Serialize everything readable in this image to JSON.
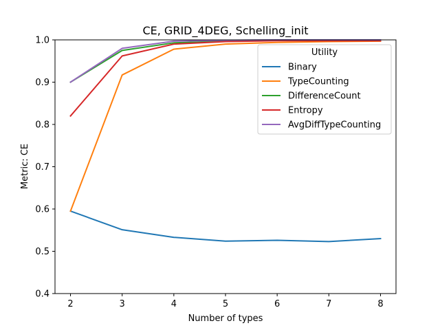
{
  "chart_data": {
    "type": "line",
    "title": "CE, GRID_4DEG, Schelling_init",
    "xlabel": "Number of types",
    "ylabel": "Metric: CE",
    "x": [
      2,
      3,
      4,
      5,
      6,
      7,
      8
    ],
    "xlim": [
      1.7,
      8.3
    ],
    "ylim": [
      0.4,
      1.0
    ],
    "xticks": [
      "2",
      "3",
      "4",
      "5",
      "6",
      "7",
      "8"
    ],
    "yticks": [
      "0.4",
      "0.5",
      "0.6",
      "0.7",
      "0.8",
      "0.9",
      "1.0"
    ],
    "grid": false,
    "legend": {
      "title": "Utility",
      "position": "top-right"
    },
    "series": [
      {
        "name": "Binary",
        "color": "#1f77b4",
        "values": [
          0.595,
          0.551,
          0.533,
          0.524,
          0.526,
          0.523,
          0.53
        ]
      },
      {
        "name": "TypeCounting",
        "color": "#ff7f0e",
        "values": [
          0.595,
          0.917,
          0.978,
          0.99,
          0.994,
          0.996,
          0.997
        ]
      },
      {
        "name": "DifferenceCount",
        "color": "#2ca02c",
        "values": [
          0.9,
          0.975,
          0.993,
          0.997,
          0.999,
          0.999,
          0.999
        ]
      },
      {
        "name": "Entropy",
        "color": "#d62728",
        "values": [
          0.82,
          0.962,
          0.99,
          0.996,
          0.998,
          0.998,
          0.998
        ]
      },
      {
        "name": "AvgDiffTypeCounting",
        "color": "#9467bd",
        "values": [
          0.9,
          0.98,
          0.997,
          0.999,
          1.0,
          1.0,
          1.0
        ]
      }
    ]
  }
}
